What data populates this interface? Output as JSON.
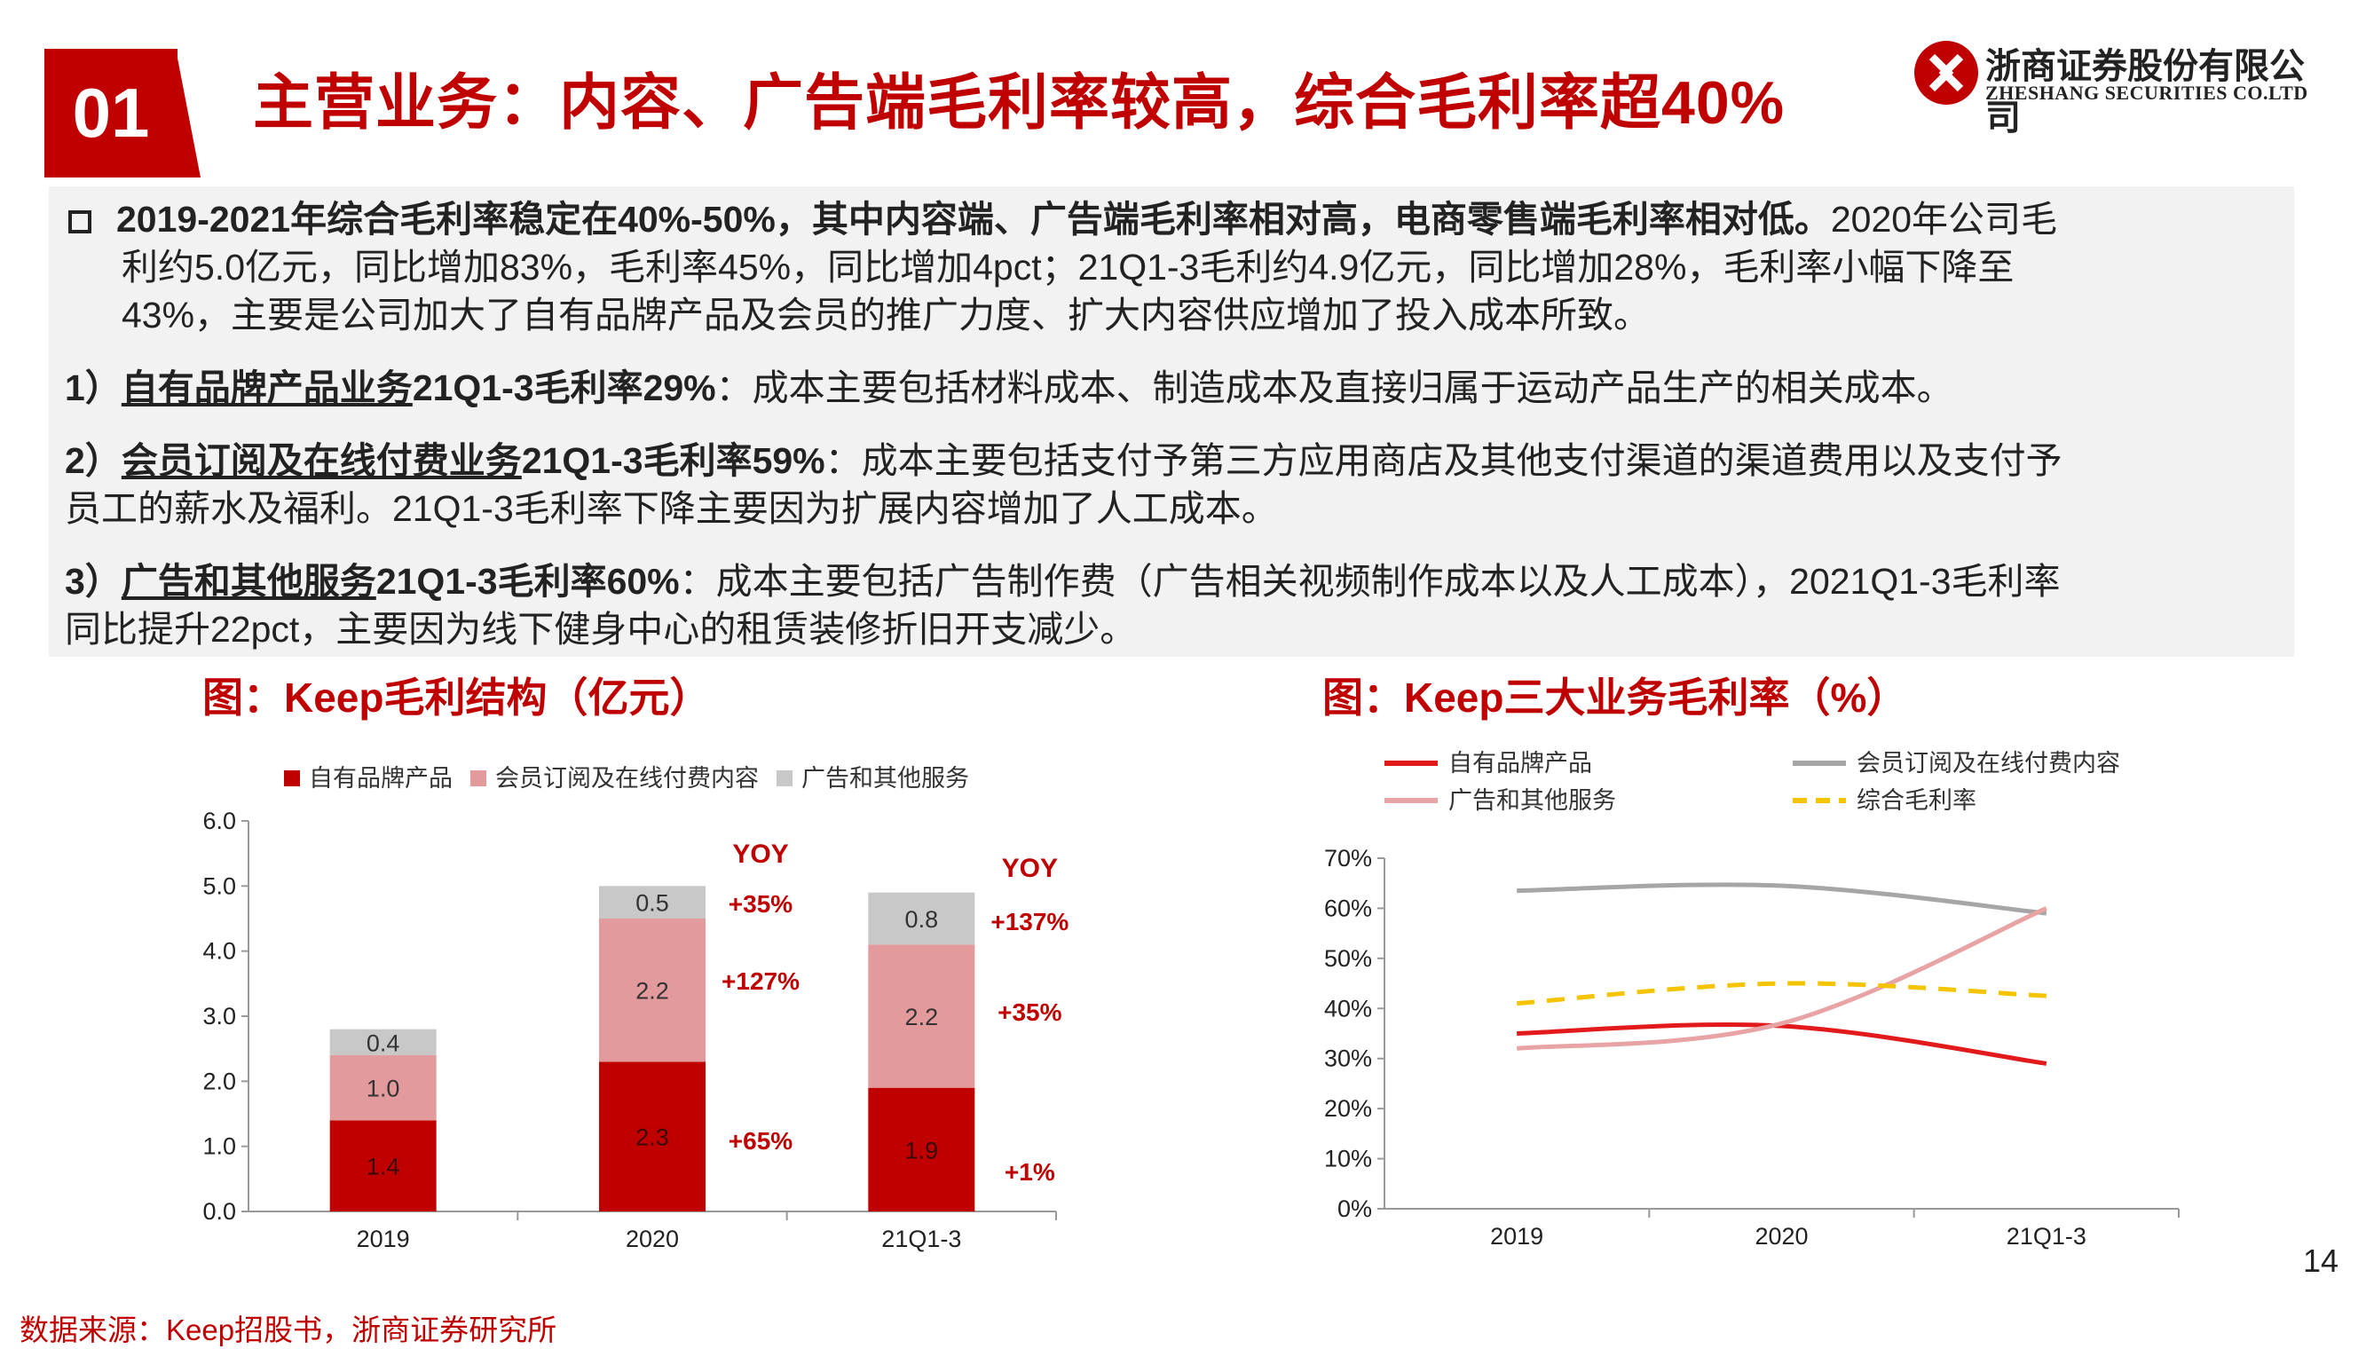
{
  "header": {
    "badge": "01",
    "title": "主营业务：内容、广告端毛利率较高，综合毛利率超40%",
    "logo_cn": "浙商证券股份有限公司",
    "logo_en": "ZHESHANG SECURITIES CO.LTD"
  },
  "summary": {
    "bullet_icon": "square-bullet-icon",
    "p0_bold": "2019-2021年综合毛利率稳定在40%-50%，其中内容端、广告端毛利率相对高，电商零售端毛利率相对低。",
    "p0_tail1": "2020年公司毛",
    "p0_line2": "利约5.0亿元，同比增加83%，毛利率45%，同比增加4pct；21Q1-3毛利约4.9亿元，同比增加28%，毛利率小幅下降至",
    "p0_line3": "43%，主要是公司加大了自有品牌产品及会员的推广力度、扩大内容供应增加了投入成本所致。",
    "p1_num": "1）",
    "p1_head": "自有品牌产品业务",
    "p1_bold": "21Q1-3毛利率29%",
    "p1_text": "：成本主要包括材料成本、制造成本及直接归属于运动产品生产的相关成本。",
    "p2_num": "2）",
    "p2_head": "会员订阅及在线付费业务",
    "p2_bold": "21Q1-3毛利率59%",
    "p2_text": "：成本主要包括支付予第三方应用商店及其他支付渠道的渠道费用以及支付予",
    "p2_line2": "员工的薪水及福利。21Q1-3毛利率下降主要因为扩展内容增加了人工成本。",
    "p3_num": "3）",
    "p3_head": "广告和其他服务",
    "p3_bold": "21Q1-3毛利率60%",
    "p3_text": "：成本主要包括广告制作费（广告相关视频制作成本以及人工成本），2021Q1-3毛利率",
    "p3_line2": "同比提升22pct，主要因为线下健身中心的租赁装修折旧开支减少。"
  },
  "chart_titles": {
    "left": "图：Keep毛利结构（亿元）",
    "right": "图：Keep三大业务毛利率（%）"
  },
  "chart_data": [
    {
      "type": "bar",
      "stacked": true,
      "categories": [
        "2019",
        "2020",
        "21Q1-3"
      ],
      "series": [
        {
          "name": "自有品牌产品",
          "color": "#c00000",
          "values": [
            1.4,
            2.3,
            1.9
          ],
          "labels": [
            "1.4",
            "2.3",
            "1.9"
          ]
        },
        {
          "name": "会员订阅及在线付费内容",
          "color": "#e39a9c",
          "values": [
            1.0,
            2.2,
            2.2
          ],
          "labels": [
            "1.0",
            "2.2",
            "2.2"
          ]
        },
        {
          "name": "广告和其他服务",
          "color": "#c8c8c8",
          "values": [
            0.4,
            0.5,
            0.8
          ],
          "labels": [
            "0.4",
            "0.5",
            "0.8"
          ]
        }
      ],
      "ylim": [
        0,
        6
      ],
      "yticks": [
        "0.0",
        "1.0",
        "2.0",
        "3.0",
        "4.0",
        "5.0",
        "6.0"
      ],
      "legend_position": "top",
      "annotations": {
        "header": "YOY",
        "groups": [
          {
            "category": "2020",
            "items": [
              "+35%",
              "+127%",
              "+65%"
            ]
          },
          {
            "category": "21Q1-3",
            "items": [
              "+137%",
              "+35%",
              "+1%"
            ]
          }
        ]
      }
    },
    {
      "type": "line",
      "categories": [
        "2019",
        "2020",
        "21Q1-3"
      ],
      "series": [
        {
          "name": "自有品牌产品",
          "color": "#e31a1c",
          "dash": false,
          "values": [
            35,
            36.5,
            29
          ]
        },
        {
          "name": "会员订阅及在线付费内容",
          "color": "#a6a6a6",
          "dash": false,
          "values": [
            63.5,
            64.5,
            59
          ]
        },
        {
          "name": "广告和其他服务",
          "color": "#e8a3a5",
          "dash": false,
          "values": [
            32,
            37,
            60
          ]
        },
        {
          "name": "综合毛利率",
          "color": "#f4c400",
          "dash": true,
          "values": [
            41,
            45,
            42.5
          ]
        }
      ],
      "ylim": [
        0,
        70
      ],
      "yticks": [
        "0%",
        "10%",
        "20%",
        "30%",
        "40%",
        "50%",
        "60%",
        "70%"
      ],
      "legend_position": "top"
    }
  ],
  "footer": {
    "page_number": "14",
    "source": "数据来源：Keep招股书，浙商证券研究所"
  }
}
